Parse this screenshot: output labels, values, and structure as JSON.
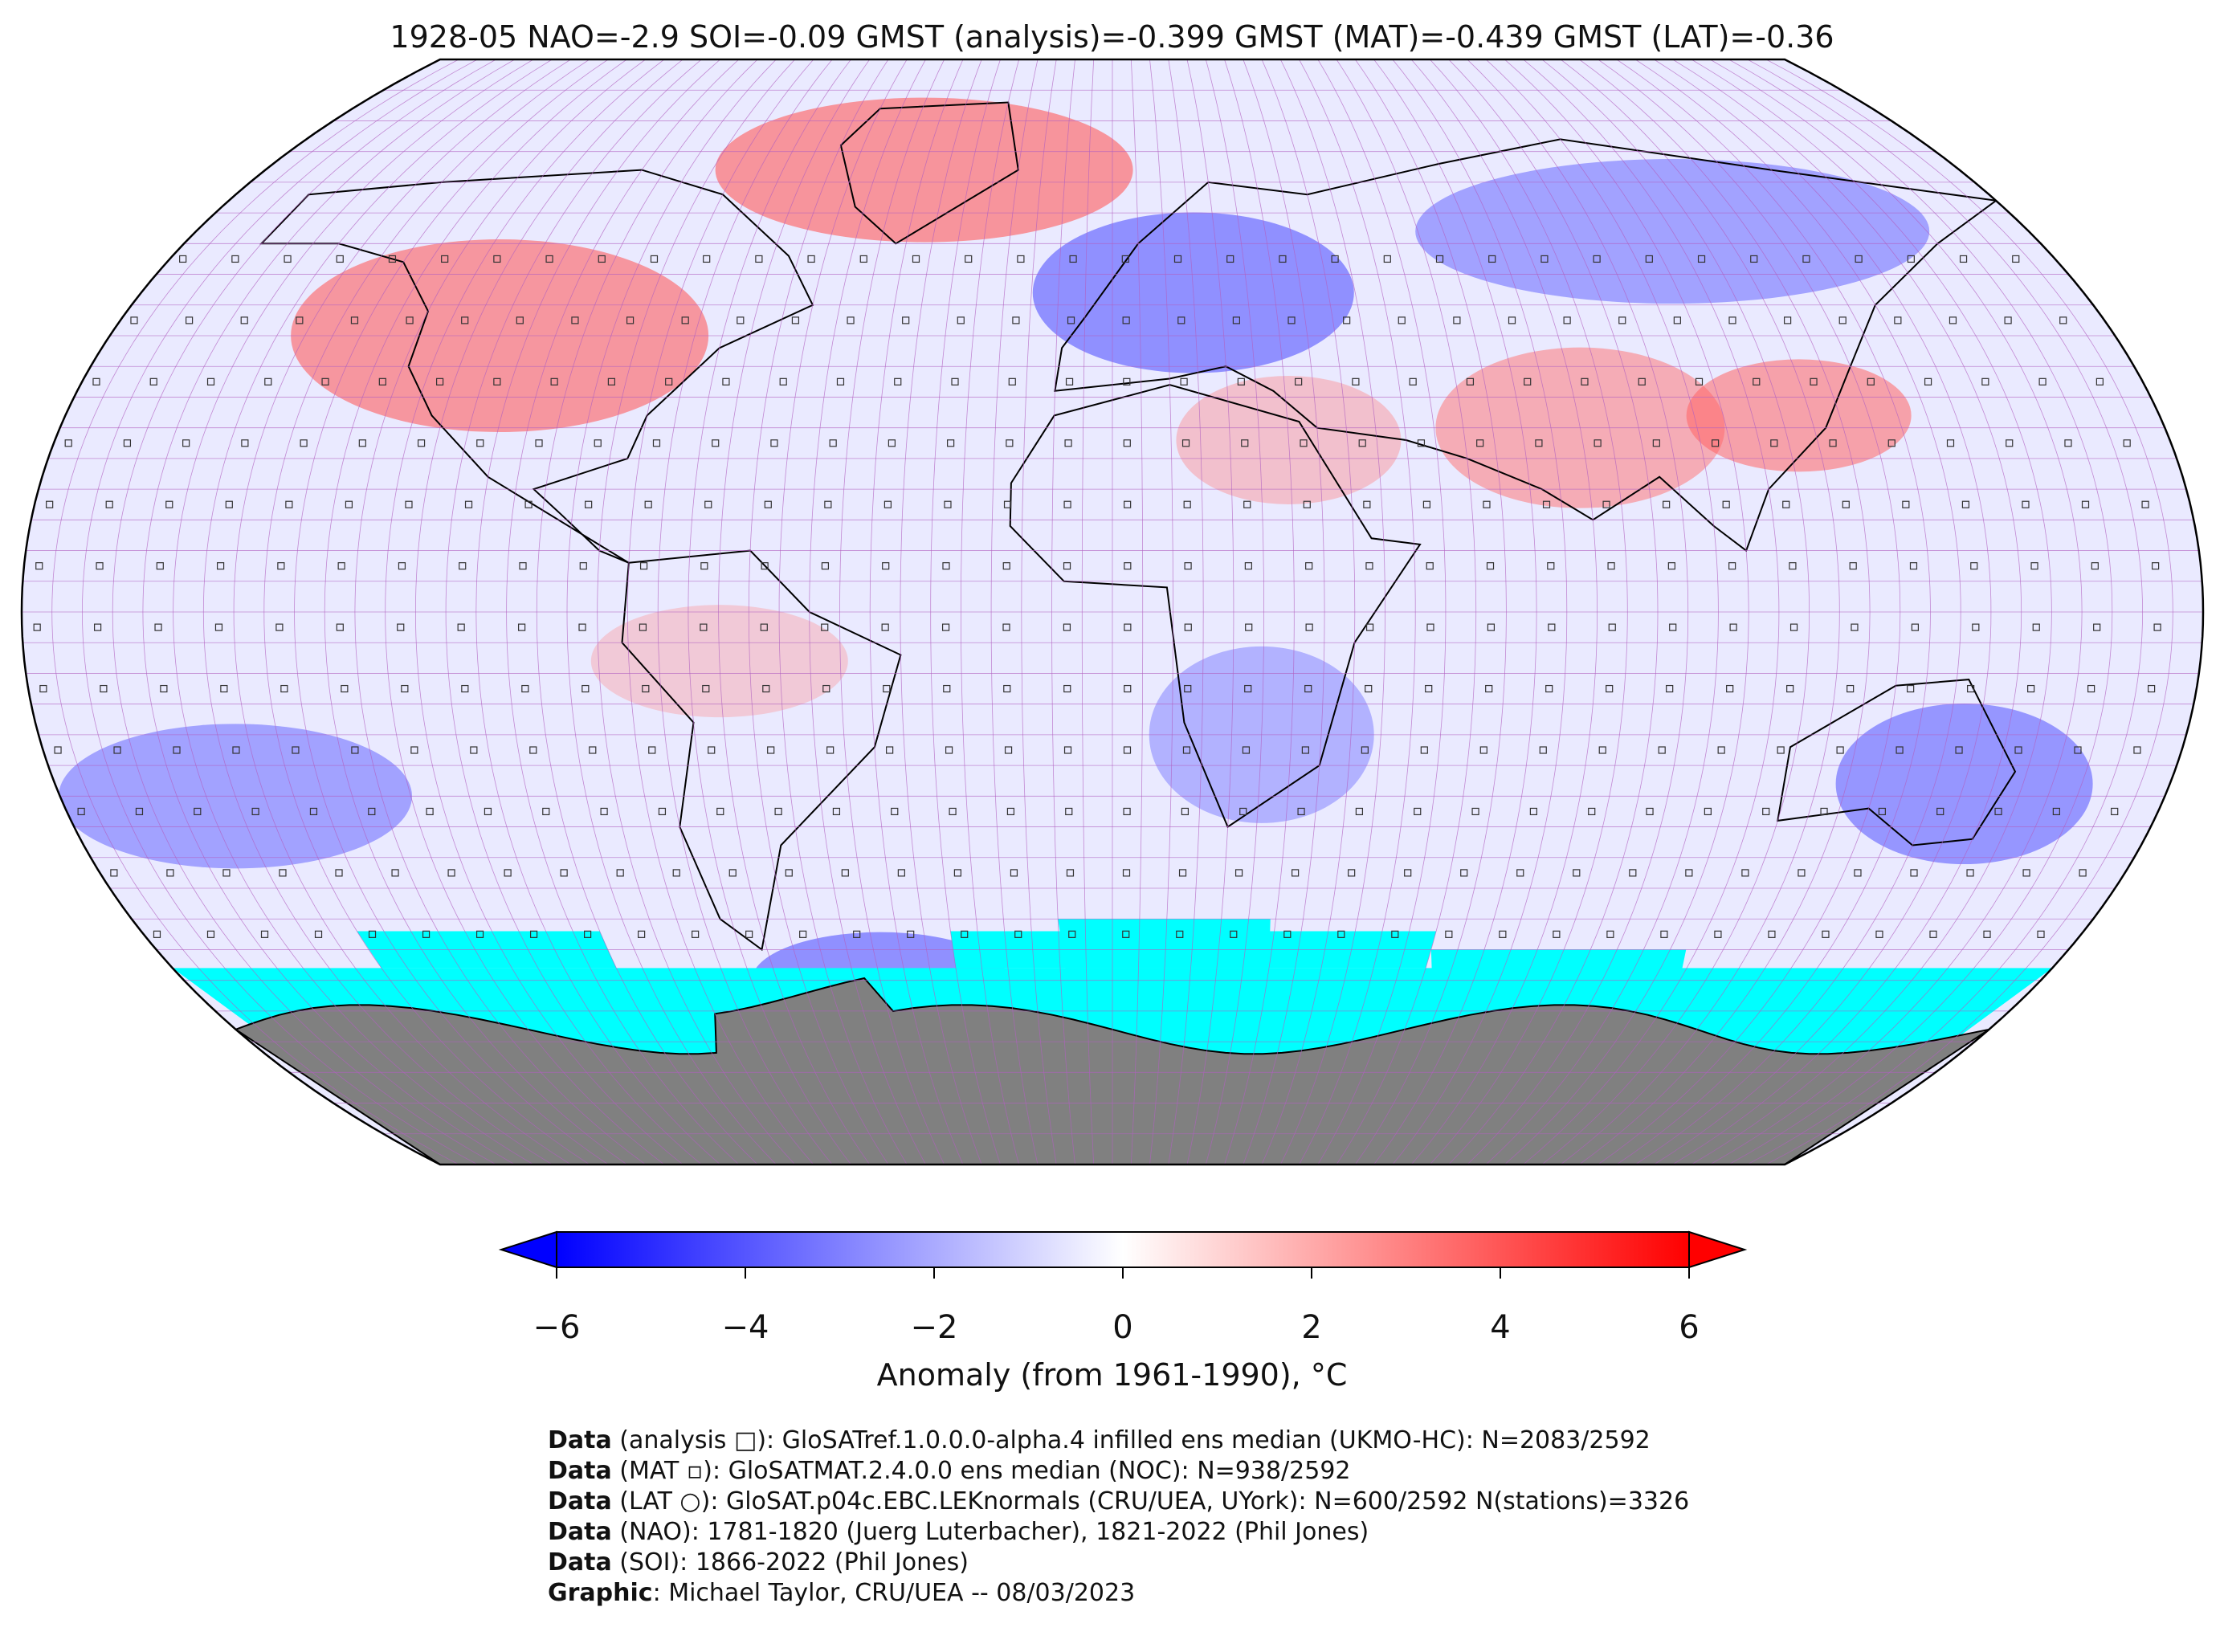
{
  "title": "1928-05 NAO=-2.9 SOI=-0.09 GMST (analysis)=-0.399 GMST (MAT)=-0.439 GMST (LAT)=-0.36",
  "map": {
    "projection": "Robinson",
    "ocean_cover_color": "#00ffff",
    "antarctica_color": "#808080",
    "gridline_color": "#b060c0",
    "grid_spacing_deg": 5
  },
  "colorbar": {
    "ticks": [
      "−6",
      "−4",
      "−2",
      "0",
      "2",
      "4",
      "6"
    ],
    "label": "Anomaly (from 1961-1990), °C",
    "colors": [
      "#0000ff",
      "#8080ff",
      "#ffffff",
      "#ff8080",
      "#ff0000"
    ],
    "extend": "both"
  },
  "credits": [
    {
      "label": "Data",
      "text": " (analysis □): GloSATref.1.0.0.0-alpha.4 infilled ens median (UKMO-HC): N=2083/2592"
    },
    {
      "label": "Data",
      "text": " (MAT ▫): GloSATMAT.2.4.0.0 ens median (NOC): N=938/2592"
    },
    {
      "label": "Data",
      "text": " (LAT ○): GloSAT.p04c.EBC.LEKnormals (CRU/UEA, UYork): N=600/2592 N(stations)=3326"
    },
    {
      "label": "Data",
      "text": " (NAO): 1781-1820 (Juerg Luterbacher), 1821-2022 (Phil Jones)"
    },
    {
      "label": "Data",
      "text": " (SOI): 1866-2022 (Phil Jones)"
    },
    {
      "label": "Graphic",
      "text": ": Michael Taylor, CRU/UEA -- 08/03/2023"
    }
  ]
}
